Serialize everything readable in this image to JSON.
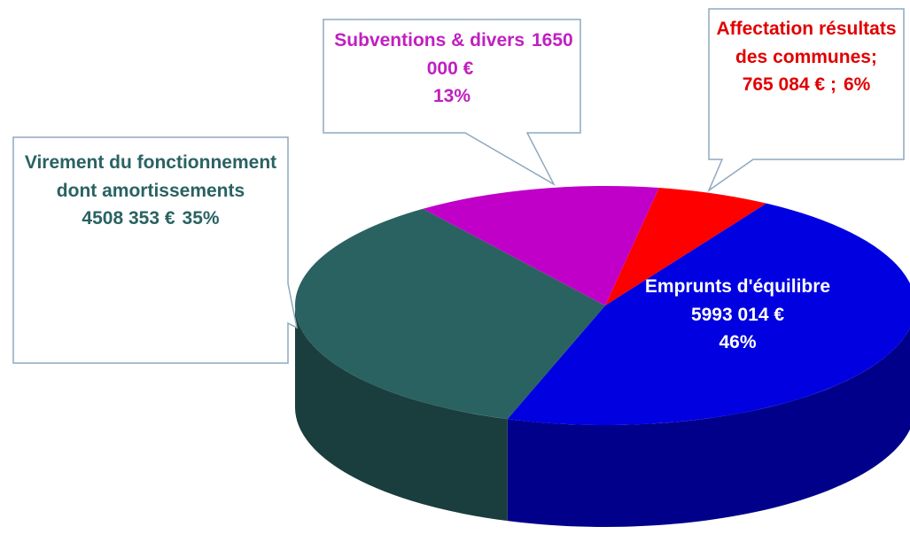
{
  "chart_data": {
    "type": "pie3d",
    "categories": [
      "Affectation résultats des communes;",
      "Emprunts d'équilibre",
      "Virement du fonctionnement dont amortissements",
      "Subventions & divers"
    ],
    "values": [
      765084,
      5993014,
      4508353,
      1650000
    ],
    "value_labels": [
      "765 084 € ;",
      "5993 014 €",
      "4508 353 €",
      "1650 000 €"
    ],
    "percentages": [
      6,
      46,
      35,
      13
    ],
    "percent_labels": [
      "6%",
      "46%",
      "35%",
      "13%"
    ],
    "colors": [
      "#ff0000",
      "#0000e0",
      "#2a6262",
      "#c000c8"
    ],
    "label_colors": [
      "#e00000",
      "#ffffff",
      "#2a6262",
      "#c020c0"
    ]
  }
}
